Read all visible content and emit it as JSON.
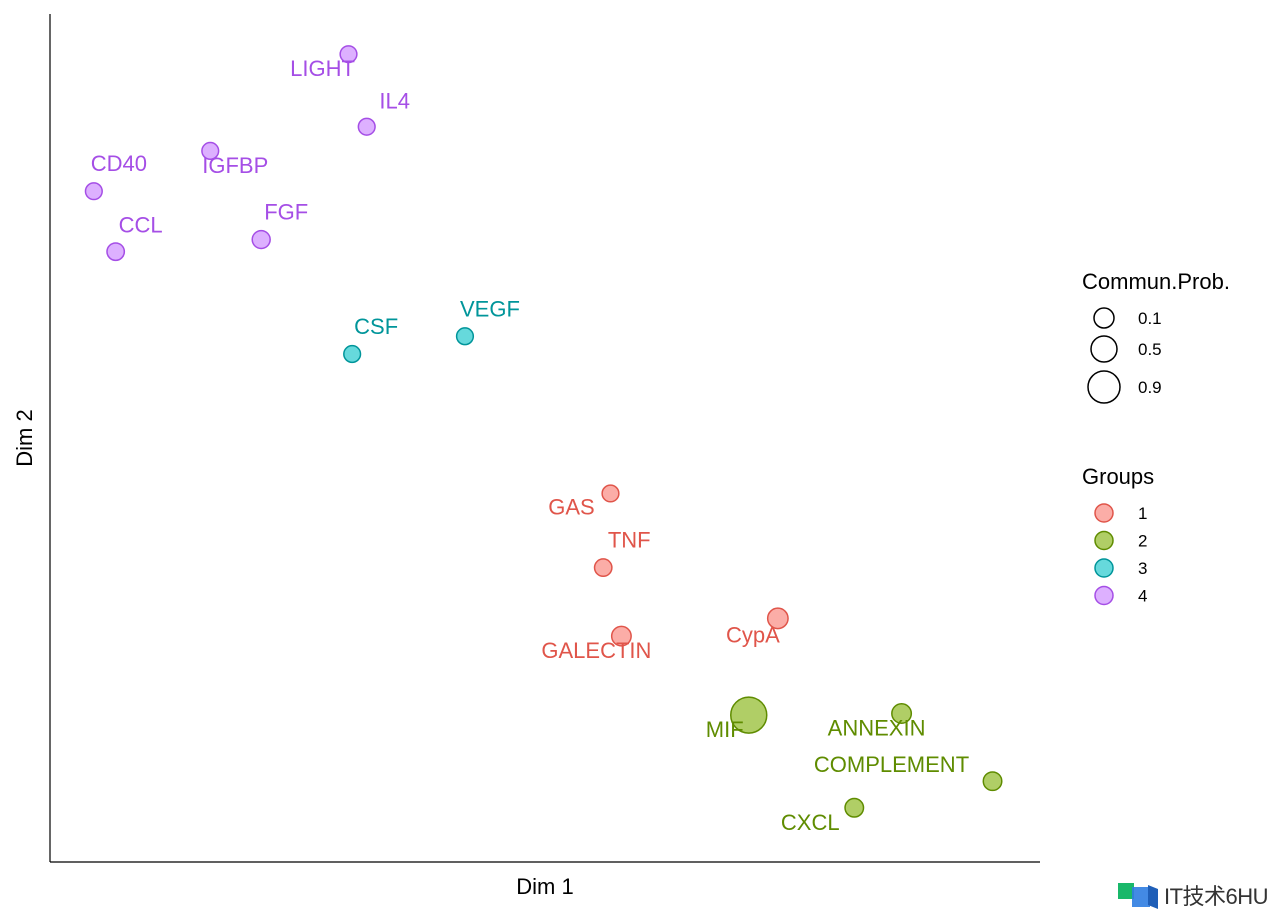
{
  "chart_data": {
    "type": "scatter",
    "xlabel": "Dim 1",
    "ylabel": "Dim 2",
    "grid": false,
    "legend_placement": "right",
    "size_legend": {
      "title": "Commun.Prob.",
      "entries": [
        {
          "label": "0.1",
          "value": 0.1
        },
        {
          "label": "0.5",
          "value": 0.5
        },
        {
          "label": "0.9",
          "value": 0.9
        }
      ]
    },
    "color_legend": {
      "title": "Groups",
      "entries": [
        {
          "label": "1",
          "color": "#F8766D"
        },
        {
          "label": "2",
          "color": "#7CAE00"
        },
        {
          "label": "3",
          "color": "#00BFC4"
        },
        {
          "label": "4",
          "color": "#C77CFF"
        }
      ]
    },
    "points": [
      {
        "name": "LIGHT",
        "x": 2.8,
        "y": 9.7,
        "group": "4",
        "prob": 0.05
      },
      {
        "name": "IL4",
        "x": 3.05,
        "y": 8.8,
        "group": "4",
        "prob": 0.05
      },
      {
        "name": "IGFBP",
        "x": 0.9,
        "y": 8.5,
        "group": "4",
        "prob": 0.05
      },
      {
        "name": "CD40",
        "x": -0.7,
        "y": 8.0,
        "group": "4",
        "prob": 0.05
      },
      {
        "name": "FGF",
        "x": 1.6,
        "y": 7.4,
        "group": "4",
        "prob": 0.07
      },
      {
        "name": "CCL",
        "x": -0.4,
        "y": 7.25,
        "group": "4",
        "prob": 0.06
      },
      {
        "name": "VEGF",
        "x": 4.4,
        "y": 6.2,
        "group": "3",
        "prob": 0.05
      },
      {
        "name": "CSF",
        "x": 2.85,
        "y": 5.98,
        "group": "3",
        "prob": 0.05
      },
      {
        "name": "GAS",
        "x": 6.4,
        "y": 4.25,
        "group": "1",
        "prob": 0.05
      },
      {
        "name": "TNF",
        "x": 6.3,
        "y": 3.33,
        "group": "1",
        "prob": 0.06
      },
      {
        "name": "CypA",
        "x": 8.7,
        "y": 2.7,
        "group": "1",
        "prob": 0.12
      },
      {
        "name": "GALECTIN",
        "x": 6.55,
        "y": 2.48,
        "group": "1",
        "prob": 0.1
      },
      {
        "name": "MIF",
        "x": 8.3,
        "y": 1.5,
        "group": "2",
        "prob": 0.75
      },
      {
        "name": "ANNEXIN",
        "x": 10.4,
        "y": 1.52,
        "group": "2",
        "prob": 0.1
      },
      {
        "name": "COMPLEMENT",
        "x": 11.65,
        "y": 0.68,
        "group": "2",
        "prob": 0.08
      },
      {
        "name": "CXCL",
        "x": 9.75,
        "y": 0.35,
        "group": "2",
        "prob": 0.08
      }
    ]
  },
  "watermark": {
    "text": "IT技术6HU"
  }
}
